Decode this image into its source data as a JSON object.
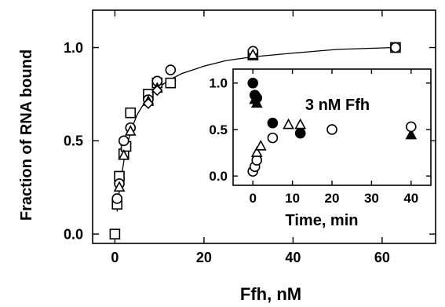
{
  "chart_data": [
    {
      "id": "main",
      "type": "scatter",
      "xlabel": "Ffh, nM",
      "ylabel": "Fraction of RNA bound",
      "xlim": [
        -5,
        72
      ],
      "ylim": [
        -0.05,
        1.2
      ],
      "xticks": [
        0,
        20,
        40,
        60
      ],
      "yticks": [
        0.0,
        0.5,
        1.0
      ],
      "xtick_labels": [
        "0",
        "20",
        "40",
        "60"
      ],
      "ytick_labels": [
        "0.0",
        "0.5",
        "1.0"
      ],
      "fit": {
        "type": "line",
        "model": "binding curve",
        "x": [
          0.5,
          1,
          2,
          3,
          4,
          5,
          6,
          8,
          10,
          12.5,
          15,
          20,
          25,
          31,
          40,
          50,
          63
        ],
        "y": [
          0.12,
          0.23,
          0.39,
          0.5,
          0.58,
          0.64,
          0.68,
          0.75,
          0.79,
          0.83,
          0.86,
          0.9,
          0.93,
          0.95,
          0.97,
          0.99,
          1.0
        ]
      },
      "series": [
        {
          "marker": "square-open",
          "x": [
            0,
            0.5,
            1,
            2,
            2.5,
            3.5,
            7.5,
            9.5,
            12.5,
            31,
            63
          ],
          "y": [
            0.0,
            0.16,
            0.31,
            0.43,
            0.47,
            0.65,
            0.75,
            0.81,
            0.81,
            0.96,
            1.0
          ]
        },
        {
          "marker": "circle-open",
          "x": [
            0.5,
            1,
            2,
            3.5,
            7.5,
            9.5,
            12.5,
            31,
            63
          ],
          "y": [
            0.19,
            0.27,
            0.5,
            0.57,
            0.72,
            0.82,
            0.88,
            0.98,
            1.0
          ]
        },
        {
          "marker": "triangle-open",
          "x": [
            1,
            2,
            3.5,
            7.5,
            9.5,
            31
          ],
          "y": [
            0.25,
            0.42,
            0.55,
            0.71,
            0.78,
            0.96
          ]
        },
        {
          "marker": "diamond-open",
          "x": [
            7.5,
            9.5
          ],
          "y": [
            0.7,
            0.77
          ]
        }
      ]
    },
    {
      "id": "inset",
      "type": "scatter",
      "annotation": "3 nM Ffh",
      "xlabel": "Time, min",
      "ylabel": "",
      "xlim": [
        -5,
        45
      ],
      "ylim": [
        -0.1,
        1.15
      ],
      "xticks": [
        0,
        10,
        20,
        30,
        40
      ],
      "yticks": [
        0.0,
        0.5,
        1.0
      ],
      "xtick_labels": [
        "0",
        "10",
        "20",
        "30",
        "40"
      ],
      "ytick_labels": [
        "0.0",
        "0.5",
        "1.0"
      ],
      "series": [
        {
          "marker": "circle-filled",
          "x": [
            0,
            0.5,
            1,
            5,
            12
          ],
          "y": [
            1.0,
            0.87,
            0.84,
            0.57,
            0.46
          ]
        },
        {
          "marker": "triangle-filled",
          "x": [
            0.5,
            1,
            40
          ],
          "y": [
            0.82,
            0.78,
            0.44
          ]
        },
        {
          "marker": "circle-open",
          "x": [
            0,
            0.5,
            1,
            5,
            20,
            40
          ],
          "y": [
            0.05,
            0.1,
            0.17,
            0.41,
            0.5,
            0.53
          ]
        },
        {
          "marker": "triangle-open",
          "x": [
            1,
            2,
            9,
            12
          ],
          "y": [
            0.25,
            0.32,
            0.55,
            0.55
          ]
        }
      ]
    }
  ]
}
